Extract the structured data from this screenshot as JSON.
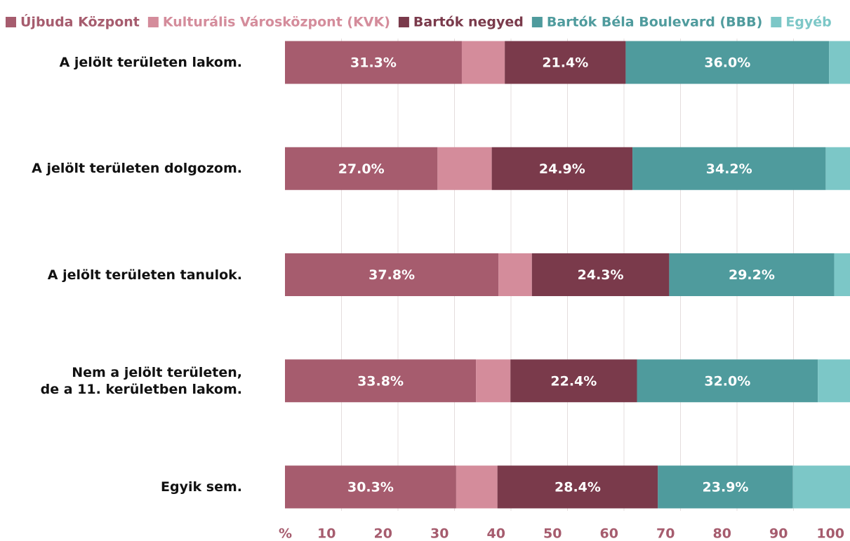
{
  "chart_data": {
    "type": "stacked_barh",
    "categories": [
      "A jelölt területen lakom.",
      "A jelölt területen dolgozom.",
      "A jelölt területen tanulok.",
      "Nem a jelölt területen,\nde a 11. kerületben lakom.",
      "Egyik sem."
    ],
    "series": [
      {
        "name": "Újbuda Központ",
        "color": "#a65c6e",
        "values": [
          31.3,
          27.0,
          37.8,
          33.8,
          30.3
        ],
        "value_labels": [
          "31.3%",
          "27.0%",
          "37.8%",
          "33.8%",
          "30.3%"
        ]
      },
      {
        "name": "Kulturális Városközpont (KVK)",
        "color": "#d48c9b",
        "values": [
          7.6,
          9.6,
          5.9,
          6.1,
          7.3
        ]
      },
      {
        "name": "Bartók negyed",
        "color": "#7a3a4b",
        "values": [
          21.4,
          24.9,
          24.3,
          22.4,
          28.4
        ],
        "value_labels": [
          "21.4%",
          "24.9%",
          "24.3%",
          "22.4%",
          "28.4%"
        ]
      },
      {
        "name": "Bartók Béla Boulevard (BBB)",
        "color": "#4f9b9d",
        "values": [
          36.0,
          34.2,
          29.2,
          32.0,
          23.9
        ],
        "value_labels": [
          "36.0%",
          "34.2%",
          "29.2%",
          "32.0%",
          "23.9%"
        ]
      },
      {
        "name": "Egyéb",
        "color": "#7cc7c7",
        "values": [
          3.7,
          4.3,
          2.8,
          5.7,
          10.1
        ]
      }
    ],
    "xlim": [
      0,
      100
    ],
    "xticks": [
      {
        "value": 0,
        "label": "%"
      },
      10,
      20,
      30,
      40,
      50,
      60,
      70,
      80,
      90,
      100
    ],
    "grid": true
  }
}
